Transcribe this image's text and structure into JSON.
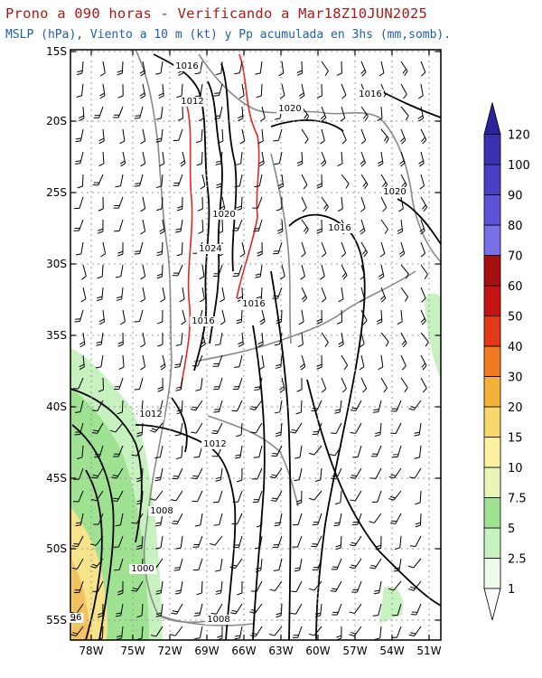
{
  "header": {
    "title": "Prono a 090 horas - Verificando a Mar18Z10JUN2025",
    "subtitle": "MSLP (hPa), Viento a 10 m (kt) y Pp acumulada en 3hs (mm,somb)."
  },
  "map": {
    "lat_labels": [
      "15S",
      "20S",
      "25S",
      "30S",
      "35S",
      "40S",
      "45S",
      "50S",
      "55S"
    ],
    "lon_labels": [
      "78W",
      "75W",
      "72W",
      "69W",
      "66W",
      "63W",
      "60W",
      "57W",
      "54W",
      "51W"
    ],
    "isobar_labels": [
      "1016",
      "1012",
      "1020",
      "1016",
      "1020",
      "1024",
      "1016",
      "1016",
      "1020",
      "1016",
      "1012",
      "1012",
      "1008",
      "1000",
      "1008",
      "96"
    ]
  },
  "colorbar": {
    "levels": [
      "1",
      "2.5",
      "5",
      "7.5",
      "10",
      "15",
      "20",
      "30",
      "40",
      "50",
      "60",
      "70",
      "80",
      "90",
      "100",
      "120"
    ],
    "colors": [
      "#eefbea",
      "#c8f1c0",
      "#9fe392",
      "#e9f6b8",
      "#fbf1a0",
      "#f6d86e",
      "#f3b33a",
      "#f07a22",
      "#e23a18",
      "#c61414",
      "#a80f0f",
      "#7a6fe6",
      "#5e53d8",
      "#4a40c6",
      "#3a32b3",
      "#2a239c"
    ]
  }
}
